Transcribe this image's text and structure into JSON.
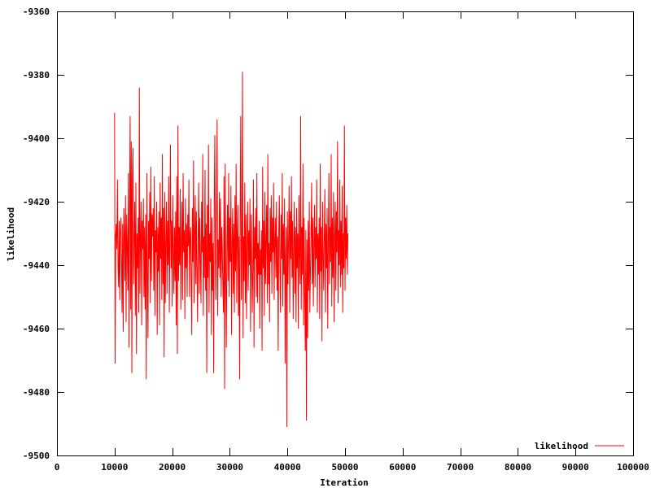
{
  "chart_data": {
    "type": "line",
    "title": "",
    "xlabel": "Iteration",
    "ylabel": "likelihood",
    "xlim": [
      0,
      100000
    ],
    "ylim": [
      -9500,
      -9360
    ],
    "x_ticks": [
      0,
      10000,
      20000,
      30000,
      40000,
      50000,
      60000,
      70000,
      80000,
      90000,
      100000
    ],
    "x_tick_labels": [
      "0",
      "10000",
      "20000",
      "30000",
      "40000",
      "50000",
      "60000",
      "70000",
      "80000",
      "90000",
      "100000"
    ],
    "y_ticks": [
      -9500,
      -9480,
      -9460,
      -9440,
      -9420,
      -9400,
      -9380,
      -9360
    ],
    "y_tick_labels": [
      "-9500",
      "-9480",
      "-9460",
      "-9440",
      "-9420",
      "-9400",
      "-9380",
      "-9360"
    ],
    "grid": false,
    "legend_position": "bottom-right",
    "series": [
      {
        "name": "likelihood",
        "color": "#ff0000",
        "x_start": 10000,
        "x_step": 100,
        "values": [
          -9392,
          -9471,
          -9431,
          -9427,
          -9435,
          -9413,
          -9440,
          -9447,
          -9426,
          -9451,
          -9430,
          -9425,
          -9438,
          -9455,
          -9427,
          -9461,
          -9422,
          -9430,
          -9445,
          -9418,
          -9458,
          -9424,
          -9434,
          -9448,
          -9411,
          -9466,
          -9424,
          -9393,
          -9454,
          -9401,
          -9474,
          -9412,
          -9403,
          -9446,
          -9432,
          -9420,
          -9456,
          -9414,
          -9468,
          -9430,
          -9441,
          -9425,
          -9455,
          -9384,
          -9449,
          -9432,
          -9420,
          -9459,
          -9426,
          -9435,
          -9419,
          -9450,
          -9428,
          -9454,
          -9424,
          -9476,
          -9411,
          -9442,
          -9463,
          -9426,
          -9438,
          -9417,
          -9452,
          -9409,
          -9445,
          -9424,
          -9431,
          -9422,
          -9448,
          -9412,
          -9456,
          -9429,
          -9436,
          -9420,
          -9462,
          -9428,
          -9442,
          -9423,
          -9459,
          -9414,
          -9438,
          -9425,
          -9451,
          -9405,
          -9446,
          -9422,
          -9469,
          -9417,
          -9452,
          -9433,
          -9420,
          -9449,
          -9426,
          -9440,
          -9412,
          -9455,
          -9432,
          -9402,
          -9441,
          -9426,
          -9453,
          -9418,
          -9435,
          -9449,
          -9428,
          -9445,
          -9423,
          -9459,
          -9412,
          -9468,
          -9396,
          -9445,
          -9428,
          -9440,
          -9416,
          -9454,
          -9432,
          -9420,
          -9451,
          -9411,
          -9436,
          -9429,
          -9457,
          -9419,
          -9441,
          -9427,
          -9450,
          -9424,
          -9434,
          -9413,
          -9450,
          -9430,
          -9428,
          -9444,
          -9462,
          -9422,
          -9439,
          -9407,
          -9452,
          -9430,
          -9418,
          -9446,
          -9423,
          -9441,
          -9458,
          -9431,
          -9414,
          -9449,
          -9425,
          -9438,
          -9452,
          -9420,
          -9436,
          -9405,
          -9456,
          -9431,
          -9444,
          -9410,
          -9448,
          -9427,
          -9474,
          -9421,
          -9444,
          -9402,
          -9455,
          -9430,
          -9439,
          -9419,
          -9462,
          -9425,
          -9448,
          -9433,
          -9474,
          -9420,
          -9399,
          -9438,
          -9451,
          -9425,
          -9394,
          -9456,
          -9432,
          -9441,
          -9417,
          -9444,
          -9419,
          -9450,
          -9428,
          -9435,
          -9447,
          -9455,
          -9412,
          -9479,
          -9408,
          -9443,
          -9466,
          -9434,
          -9421,
          -9445,
          -9411,
          -9450,
          -9425,
          -9439,
          -9415,
          -9462,
          -9433,
          -9422,
          -9449,
          -9427,
          -9455,
          -9418,
          -9442,
          -9408,
          -9452,
          -9430,
          -9421,
          -9456,
          -9431,
          -9476,
          -9425,
          -9393,
          -9451,
          -9438,
          -9379,
          -9463,
          -9431,
          -9445,
          -9414,
          -9452,
          -9424,
          -9457,
          -9433,
          -9420,
          -9448,
          -9429,
          -9440,
          -9419,
          -9461,
          -9424,
          -9438,
          -9455,
          -9441,
          -9413,
          -9466,
          -9428,
          -9438,
          -9422,
          -9450,
          -9411,
          -9452,
          -9433,
          -9443,
          -9426,
          -9460,
          -9435,
          -9443,
          -9429,
          -9467,
          -9409,
          -9441,
          -9426,
          -9456,
          -9417,
          -9446,
          -9432,
          -9421,
          -9452,
          -9405,
          -9446,
          -9433,
          -9458,
          -9422,
          -9439,
          -9418,
          -9449,
          -9425,
          -9436,
          -9414,
          -9451,
          -9432,
          -9425,
          -9444,
          -9420,
          -9448,
          -9431,
          -9467,
          -9430,
          -9418,
          -9442,
          -9455,
          -9424,
          -9438,
          -9411,
          -9453,
          -9427,
          -9443,
          -9419,
          -9471,
          -9437,
          -9428,
          -9491,
          -9423,
          -9446,
          -9432,
          -9415,
          -9455,
          -9423,
          -9438,
          -9412,
          -9444,
          -9426,
          -9457,
          -9433,
          -9420,
          -9449,
          -9428,
          -9458,
          -9422,
          -9441,
          -9430,
          -9460,
          -9418,
          -9437,
          -9446,
          -9393,
          -9454,
          -9428,
          -9443,
          -9408,
          -9459,
          -9425,
          -9449,
          -9467,
          -9429,
          -9489,
          -9432,
          -9463,
          -9426,
          -9448,
          -9420,
          -9455,
          -9441,
          -9431,
          -9414,
          -9446,
          -9425,
          -9453,
          -9433,
          -9421,
          -9447,
          -9428,
          -9438,
          -9413,
          -9455,
          -9430,
          -9443,
          -9425,
          -9457,
          -9408,
          -9442,
          -9428,
          -9464,
          -9420,
          -9436,
          -9448,
          -9431,
          -9416,
          -9455,
          -9427,
          -9441,
          -9422,
          -9460,
          -9432,
          -9411,
          -9446,
          -9428,
          -9439,
          -9405,
          -9453,
          -9425,
          -9444,
          -9417,
          -9458,
          -9432,
          -9420,
          -9448,
          -9423,
          -9436,
          -9401,
          -9452,
          -9429,
          -9440,
          -9413,
          -9447,
          -9426,
          -9443,
          -9415,
          -9455,
          -9430,
          -9441,
          -9396,
          -9448,
          -9425,
          -9438,
          -9421,
          -9443,
          -9430
        ]
      }
    ]
  }
}
